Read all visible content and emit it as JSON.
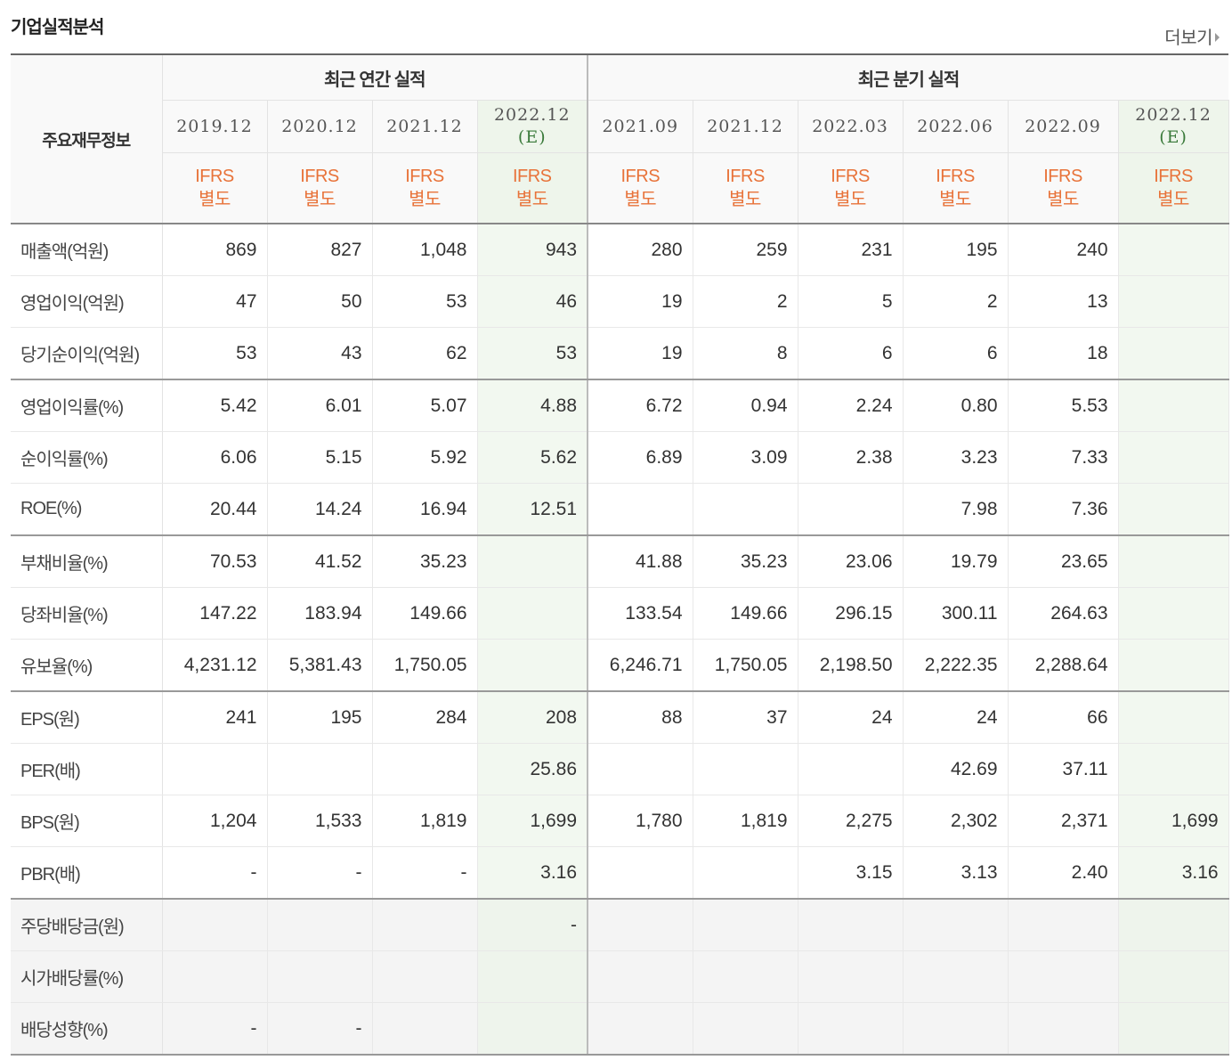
{
  "title": "기업실적분석",
  "more_label": "더보기",
  "header": {
    "label_head": "주요재무정보",
    "annual_group": "최근 연간 실적",
    "quarter_group": "최근 분기 실적",
    "periods": [
      {
        "date": "2019.12",
        "est": ""
      },
      {
        "date": "2020.12",
        "est": ""
      },
      {
        "date": "2021.12",
        "est": ""
      },
      {
        "date": "2022.12",
        "est": "(E)"
      },
      {
        "date": "2021.09",
        "est": ""
      },
      {
        "date": "2021.12",
        "est": ""
      },
      {
        "date": "2022.03",
        "est": ""
      },
      {
        "date": "2022.06",
        "est": ""
      },
      {
        "date": "2022.09",
        "est": ""
      },
      {
        "date": "2022.12",
        "est": "(E)"
      }
    ],
    "accounting": {
      "line1": "IFRS",
      "line2": "별도"
    }
  },
  "rows": [
    {
      "label": "매출액(억원)",
      "values": [
        "869",
        "827",
        "1,048",
        "943",
        "280",
        "259",
        "231",
        "195",
        "240",
        ""
      ]
    },
    {
      "label": "영업이익(억원)",
      "values": [
        "47",
        "50",
        "53",
        "46",
        "19",
        "2",
        "5",
        "2",
        "13",
        ""
      ]
    },
    {
      "label": "당기순이익(억원)",
      "values": [
        "53",
        "43",
        "62",
        "53",
        "19",
        "8",
        "6",
        "6",
        "18",
        ""
      ]
    },
    {
      "label": "영업이익률(%)",
      "values": [
        "5.42",
        "6.01",
        "5.07",
        "4.88",
        "6.72",
        "0.94",
        "2.24",
        "0.80",
        "5.53",
        ""
      ]
    },
    {
      "label": "순이익률(%)",
      "values": [
        "6.06",
        "5.15",
        "5.92",
        "5.62",
        "6.89",
        "3.09",
        "2.38",
        "3.23",
        "7.33",
        ""
      ]
    },
    {
      "label": "ROE(%)",
      "values": [
        "20.44",
        "14.24",
        "16.94",
        "12.51",
        "",
        "",
        "",
        "7.98",
        "7.36",
        ""
      ]
    },
    {
      "label": "부채비율(%)",
      "values": [
        "70.53",
        "41.52",
        "35.23",
        "",
        "41.88",
        "35.23",
        "23.06",
        "19.79",
        "23.65",
        ""
      ]
    },
    {
      "label": "당좌비율(%)",
      "values": [
        "147.22",
        "183.94",
        "149.66",
        "",
        "133.54",
        "149.66",
        "296.15",
        "300.11",
        "264.63",
        ""
      ]
    },
    {
      "label": "유보율(%)",
      "values": [
        "4,231.12",
        "5,381.43",
        "1,750.05",
        "",
        "6,246.71",
        "1,750.05",
        "2,198.50",
        "2,222.35",
        "2,288.64",
        ""
      ]
    },
    {
      "label": "EPS(원)",
      "values": [
        "241",
        "195",
        "284",
        "208",
        "88",
        "37",
        "24",
        "24",
        "66",
        ""
      ]
    },
    {
      "label": "PER(배)",
      "values": [
        "",
        "",
        "",
        "25.86",
        "",
        "",
        "",
        "42.69",
        "37.11",
        ""
      ]
    },
    {
      "label": "BPS(원)",
      "values": [
        "1,204",
        "1,533",
        "1,819",
        "1,699",
        "1,780",
        "1,819",
        "2,275",
        "2,302",
        "2,371",
        "1,699"
      ]
    },
    {
      "label": "PBR(배)",
      "values": [
        "-",
        "-",
        "-",
        "3.16",
        "",
        "",
        "3.15",
        "3.13",
        "2.40",
        "3.16"
      ]
    },
    {
      "label": "주당배당금(원)",
      "values": [
        "",
        "",
        "",
        "-",
        "",
        "",
        "",
        "",
        "",
        ""
      ]
    },
    {
      "label": "시가배당률(%)",
      "values": [
        "",
        "",
        "",
        "",
        "",
        "",
        "",
        "",
        "",
        ""
      ]
    },
    {
      "label": "배당성향(%)",
      "values": [
        "-",
        "-",
        "",
        "",
        "",
        "",
        "",
        "",
        "",
        ""
      ]
    }
  ]
}
